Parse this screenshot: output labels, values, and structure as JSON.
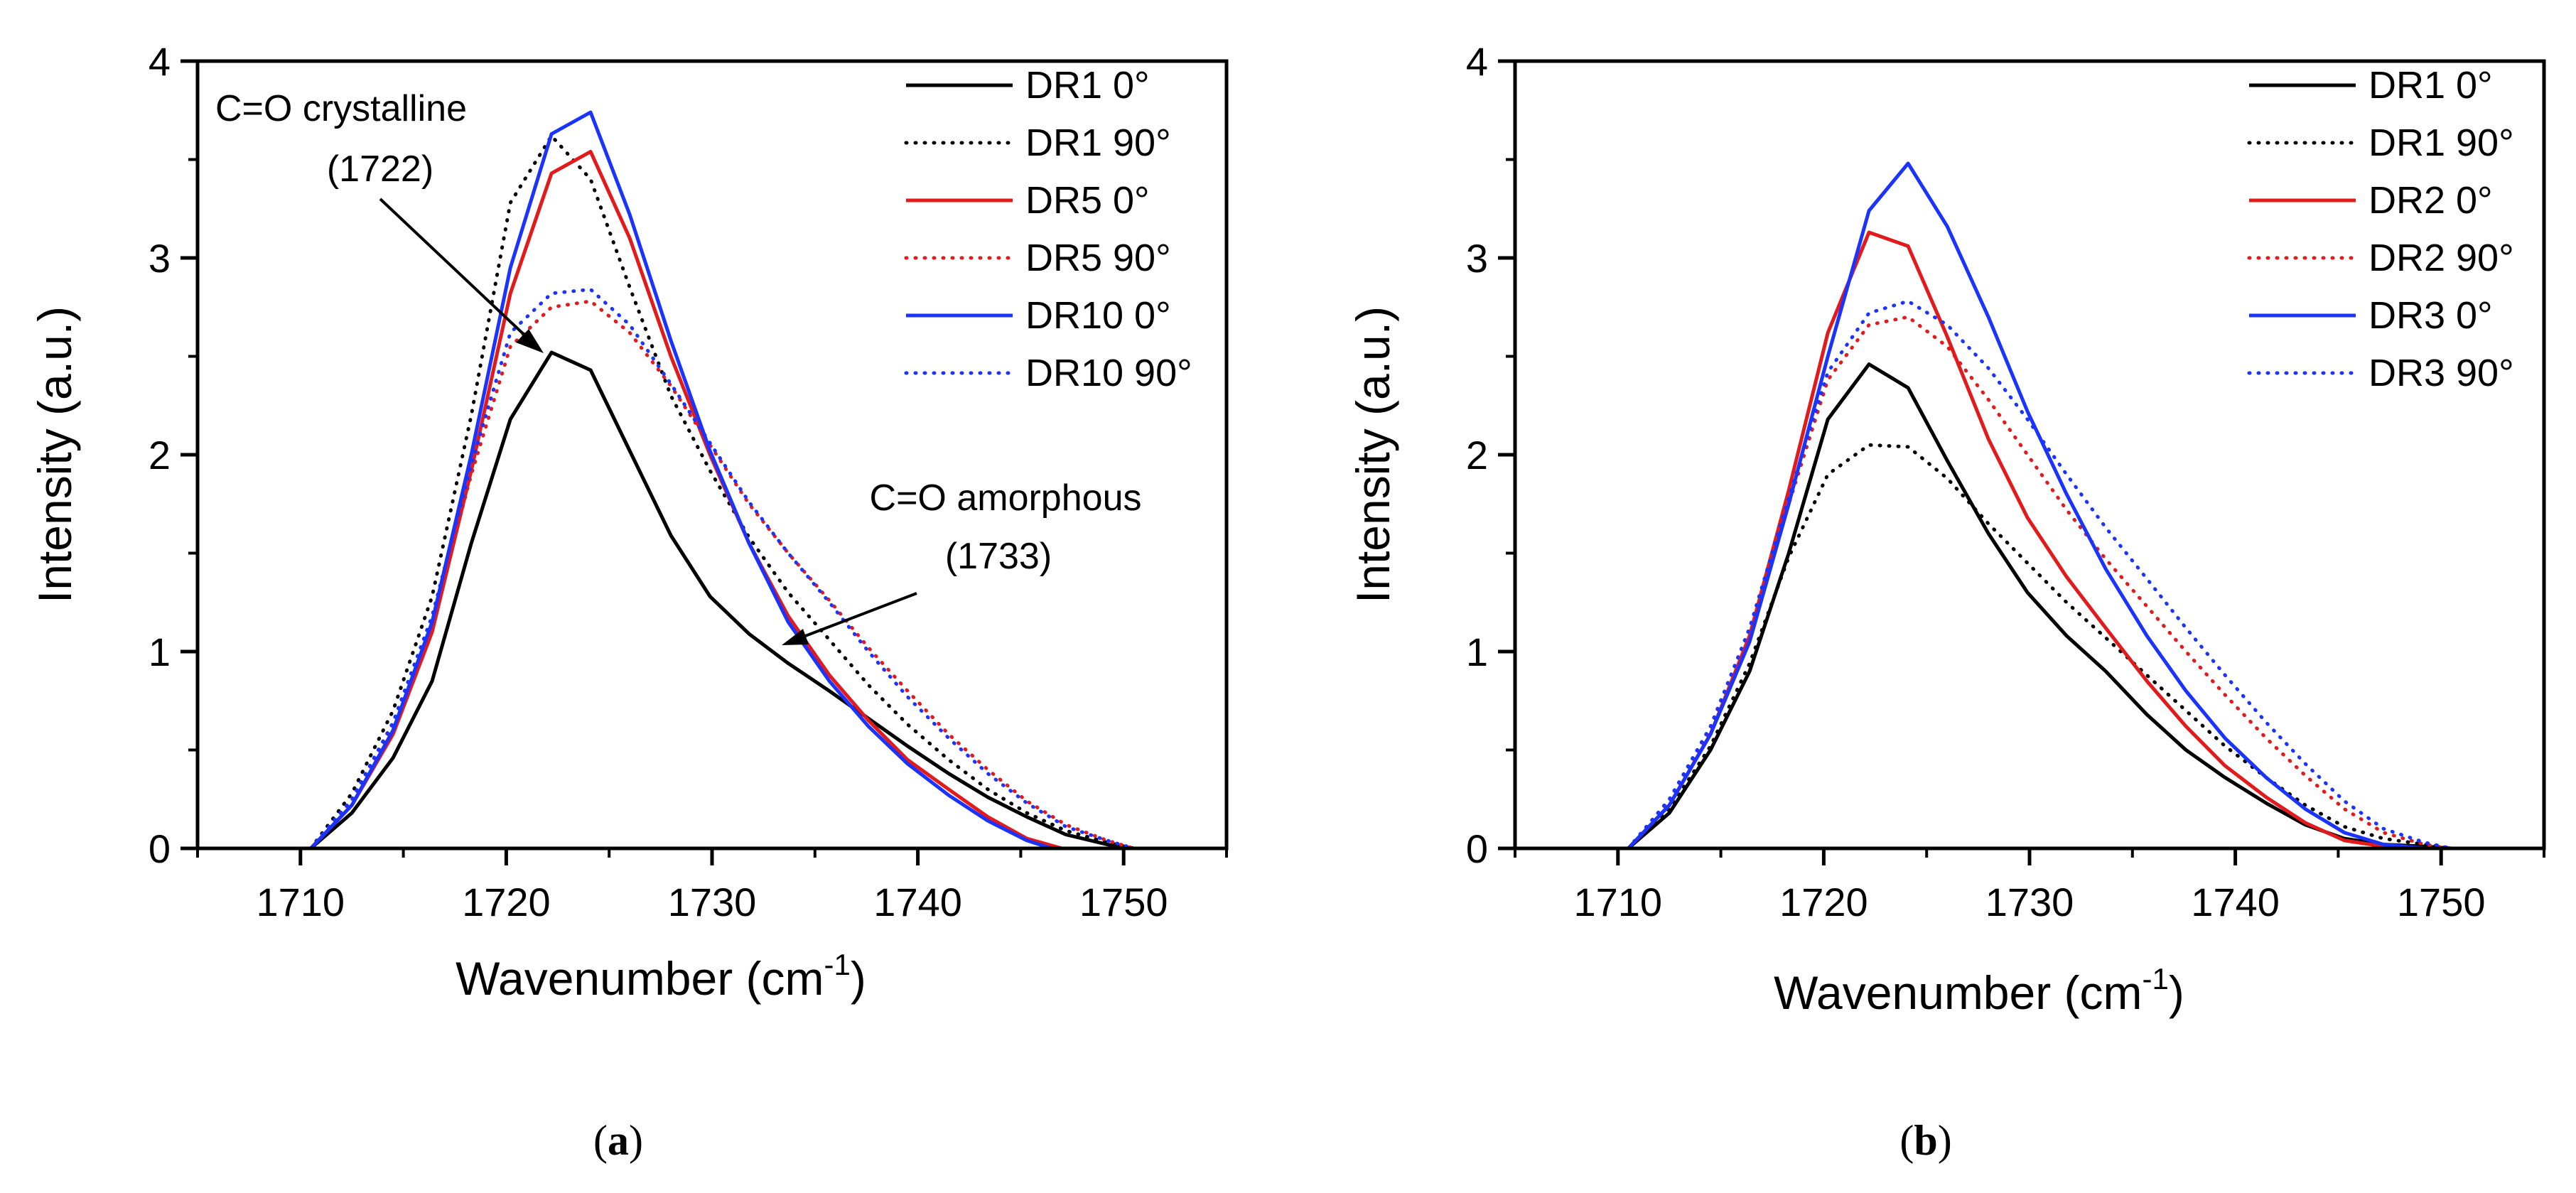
{
  "chart_data": [
    {
      "panel": "a",
      "panel_label": "(a)",
      "panel_letter": "a",
      "type": "line",
      "xlabel": "Wavenumber (cm",
      "xlabel_sup": "-1",
      "xlabel_close": ")",
      "ylabel": "Intensity (a.u.)",
      "xlim": [
        1705,
        1755
      ],
      "ylim": [
        0,
        4
      ],
      "xticks": [
        1710,
        1720,
        1730,
        1740,
        1750
      ],
      "yticks": [
        0,
        1,
        2,
        3,
        4
      ],
      "legend_position": "top-right",
      "series": [
        {
          "name": "DR1 0°",
          "color": "#000000",
          "style": "solid",
          "x": [
            1710.5,
            1712.5,
            1714.5,
            1716.4,
            1718.3,
            1720.2,
            1722.2,
            1724.1,
            1726,
            1728,
            1729.9,
            1731.8,
            1733.7,
            1735.7,
            1737.6,
            1739.5,
            1741.5,
            1743.4,
            1745.3,
            1747.2,
            1749.2,
            1750.5
          ],
          "y": [
            0,
            0.18,
            0.46,
            0.85,
            1.55,
            2.18,
            2.52,
            2.43,
            2.02,
            1.59,
            1.28,
            1.09,
            0.94,
            0.8,
            0.66,
            0.52,
            0.38,
            0.26,
            0.16,
            0.07,
            0.02,
            0
          ]
        },
        {
          "name": "DR1 90°",
          "color": "#000000",
          "style": "dotted",
          "x": [
            1710.5,
            1712.5,
            1714.5,
            1716.4,
            1718.3,
            1720.2,
            1722.2,
            1724.1,
            1726,
            1728,
            1729.9,
            1731.8,
            1733.7,
            1735.7,
            1737.6,
            1739.5,
            1741.5,
            1743.4,
            1745.3,
            1747.2,
            1749.2,
            1750.5
          ],
          "y": [
            0,
            0.28,
            0.7,
            1.28,
            2.2,
            3.28,
            3.62,
            3.4,
            2.85,
            2.3,
            1.92,
            1.58,
            1.3,
            1.06,
            0.83,
            0.63,
            0.45,
            0.3,
            0.18,
            0.09,
            0.03,
            0
          ]
        },
        {
          "name": "DR5 0°",
          "color": "#e31a1c",
          "style": "solid",
          "x": [
            1710.5,
            1712.5,
            1714.5,
            1716.4,
            1718.3,
            1720.2,
            1722.2,
            1724.1,
            1726,
            1728,
            1729.9,
            1731.8,
            1733.7,
            1735.7,
            1737.6,
            1739.5,
            1741.5,
            1743.4,
            1745.3,
            1747
          ],
          "y": [
            0,
            0.22,
            0.58,
            1.1,
            1.92,
            2.82,
            3.43,
            3.54,
            3.1,
            2.5,
            2.0,
            1.55,
            1.18,
            0.88,
            0.65,
            0.45,
            0.3,
            0.16,
            0.05,
            0
          ]
        },
        {
          "name": "DR5 90°",
          "color": "#e31a1c",
          "style": "dotted",
          "x": [
            1710.5,
            1712.5,
            1714.5,
            1716.4,
            1718.3,
            1720.2,
            1722.2,
            1724.1,
            1726,
            1728,
            1729.9,
            1731.8,
            1733.7,
            1735.7,
            1737.6,
            1739.5,
            1741.5,
            1743.4,
            1745.3,
            1747.2,
            1749.2,
            1750.5
          ],
          "y": [
            0,
            0.24,
            0.62,
            1.15,
            1.9,
            2.55,
            2.75,
            2.78,
            2.62,
            2.35,
            2.05,
            1.75,
            1.5,
            1.26,
            1.02,
            0.8,
            0.58,
            0.4,
            0.24,
            0.12,
            0.04,
            0
          ]
        },
        {
          "name": "DR10 0°",
          "color": "#1a33ff",
          "style": "solid",
          "x": [
            1710.5,
            1712.5,
            1714.5,
            1716.4,
            1718.3,
            1720.2,
            1722.2,
            1724.1,
            1726,
            1728,
            1729.9,
            1731.8,
            1733.7,
            1735.7,
            1737.6,
            1739.5,
            1741.5,
            1743.4,
            1745.3,
            1746.5
          ],
          "y": [
            0,
            0.22,
            0.6,
            1.15,
            2.0,
            2.95,
            3.63,
            3.74,
            3.22,
            2.58,
            2.02,
            1.55,
            1.15,
            0.85,
            0.62,
            0.43,
            0.27,
            0.14,
            0.04,
            0
          ]
        },
        {
          "name": "DR10 90°",
          "color": "#1a33ff",
          "style": "dotted",
          "x": [
            1710.5,
            1712.5,
            1714.5,
            1716.4,
            1718.3,
            1720.2,
            1722.2,
            1724.1,
            1726,
            1728,
            1729.9,
            1731.8,
            1733.7,
            1735.7,
            1737.6,
            1739.5,
            1741.5,
            1743.4,
            1745.3,
            1747.2,
            1749.2,
            1750.5
          ],
          "y": [
            0,
            0.25,
            0.64,
            1.18,
            1.95,
            2.62,
            2.82,
            2.84,
            2.66,
            2.36,
            2.06,
            1.76,
            1.5,
            1.25,
            1.0,
            0.77,
            0.56,
            0.38,
            0.23,
            0.11,
            0.04,
            0
          ]
        }
      ],
      "annotations": [
        {
          "line1": "C=O crystalline",
          "line2": "(1722)",
          "arrow_to": [
            1722.2,
            2.5
          ]
        },
        {
          "line1": "C=O amorphous",
          "line2": "(1733)",
          "arrow_to": [
            1733.2,
            1.03
          ]
        }
      ]
    },
    {
      "panel": "b",
      "panel_label": "(b)",
      "panel_letter": "b",
      "type": "line",
      "xlabel": "Wavenumber (cm",
      "xlabel_sup": "-1",
      "xlabel_close": ")",
      "ylabel": "Intensity (a.u.)",
      "xlim": [
        1705,
        1755
      ],
      "ylim": [
        0,
        4
      ],
      "xticks": [
        1710,
        1720,
        1730,
        1740,
        1750
      ],
      "yticks": [
        0,
        1,
        2,
        3,
        4
      ],
      "legend_position": "top-right",
      "series": [
        {
          "name": "DR1 0°",
          "color": "#000000",
          "style": "solid",
          "x": [
            1710.5,
            1712.5,
            1714.5,
            1716.4,
            1718.3,
            1720.2,
            1722.2,
            1724.1,
            1726,
            1728,
            1729.9,
            1731.8,
            1733.7,
            1735.7,
            1737.6,
            1739.5,
            1741.5,
            1743.4,
            1745.3,
            1747.2,
            1749.2,
            1750.5
          ],
          "y": [
            0,
            0.18,
            0.5,
            0.9,
            1.5,
            2.18,
            2.46,
            2.34,
            1.97,
            1.6,
            1.3,
            1.08,
            0.9,
            0.68,
            0.5,
            0.36,
            0.23,
            0.12,
            0.05,
            0.02,
            0.01,
            0
          ]
        },
        {
          "name": "DR1 90°",
          "color": "#000000",
          "style": "dotted",
          "x": [
            1710.5,
            1712.5,
            1714.5,
            1716.4,
            1718.3,
            1720.2,
            1722.2,
            1724.1,
            1726,
            1728,
            1729.9,
            1731.8,
            1733.7,
            1735.7,
            1737.6,
            1739.5,
            1741.5,
            1743.4,
            1745.3,
            1747.2,
            1749.2,
            1750.5
          ],
          "y": [
            0,
            0.2,
            0.52,
            0.94,
            1.48,
            1.9,
            2.05,
            2.04,
            1.88,
            1.65,
            1.45,
            1.25,
            1.07,
            0.88,
            0.7,
            0.52,
            0.36,
            0.22,
            0.11,
            0.05,
            0.02,
            0
          ]
        },
        {
          "name": "DR2 0°",
          "color": "#e31a1c",
          "style": "solid",
          "x": [
            1710.5,
            1712.5,
            1714.5,
            1716.4,
            1718.3,
            1720.2,
            1722.2,
            1724.1,
            1726,
            1728,
            1729.9,
            1731.8,
            1733.7,
            1735.7,
            1737.6,
            1739.5,
            1741.5,
            1743.4,
            1745.3,
            1747.2,
            1748.5
          ],
          "y": [
            0,
            0.22,
            0.58,
            1.08,
            1.82,
            2.62,
            3.13,
            3.06,
            2.6,
            2.08,
            1.68,
            1.38,
            1.12,
            0.85,
            0.62,
            0.42,
            0.26,
            0.13,
            0.04,
            0.01,
            0
          ]
        },
        {
          "name": "DR2 90°",
          "color": "#e31a1c",
          "style": "dotted",
          "x": [
            1710.5,
            1712.5,
            1714.5,
            1716.4,
            1718.3,
            1720.2,
            1722.2,
            1724.1,
            1726,
            1728,
            1729.9,
            1731.8,
            1733.7,
            1735.7,
            1737.6,
            1739.5,
            1741.5,
            1743.4,
            1745.3,
            1747.2,
            1749.2,
            1750.5
          ],
          "y": [
            0,
            0.24,
            0.6,
            1.1,
            1.75,
            2.38,
            2.66,
            2.7,
            2.55,
            2.28,
            2.0,
            1.72,
            1.47,
            1.23,
            1.0,
            0.78,
            0.56,
            0.37,
            0.2,
            0.08,
            0.02,
            0
          ]
        },
        {
          "name": "DR3 0°",
          "color": "#1a33ff",
          "style": "solid",
          "x": [
            1710.5,
            1712.5,
            1714.5,
            1716.4,
            1718.3,
            1720.2,
            1722.2,
            1724.1,
            1726,
            1728,
            1729.9,
            1731.8,
            1733.7,
            1735.7,
            1737.6,
            1739.5,
            1741.5,
            1743.4,
            1745.3,
            1747.2,
            1749.2
          ],
          "y": [
            0,
            0.22,
            0.58,
            1.05,
            1.75,
            2.5,
            3.24,
            3.48,
            3.16,
            2.7,
            2.22,
            1.8,
            1.42,
            1.08,
            0.8,
            0.56,
            0.36,
            0.2,
            0.08,
            0.02,
            0
          ]
        },
        {
          "name": "DR3 90°",
          "color": "#1a33ff",
          "style": "dotted",
          "x": [
            1710.5,
            1712.5,
            1714.5,
            1716.4,
            1718.3,
            1720.2,
            1722.2,
            1724.1,
            1726,
            1728,
            1729.9,
            1731.8,
            1733.7,
            1735.7,
            1737.6,
            1739.5,
            1741.5,
            1743.4,
            1745.3,
            1747.2,
            1749.2,
            1750.5
          ],
          "y": [
            0,
            0.25,
            0.62,
            1.12,
            1.78,
            2.42,
            2.72,
            2.78,
            2.66,
            2.44,
            2.18,
            1.9,
            1.63,
            1.37,
            1.12,
            0.88,
            0.64,
            0.43,
            0.24,
            0.1,
            0.03,
            0
          ]
        }
      ],
      "annotations": []
    }
  ]
}
